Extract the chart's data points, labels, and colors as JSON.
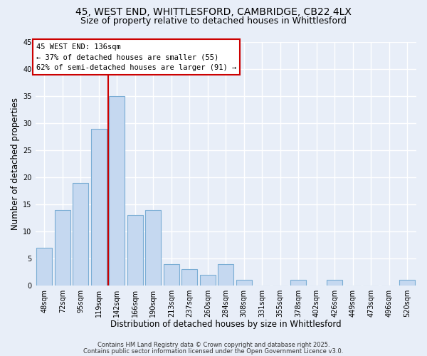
{
  "title_line1": "45, WEST END, WHITTLESFORD, CAMBRIDGE, CB22 4LX",
  "title_line2": "Size of property relative to detached houses in Whittlesford",
  "xlabel": "Distribution of detached houses by size in Whittlesford",
  "ylabel": "Number of detached properties",
  "bar_labels": [
    "48sqm",
    "72sqm",
    "95sqm",
    "119sqm",
    "142sqm",
    "166sqm",
    "190sqm",
    "213sqm",
    "237sqm",
    "260sqm",
    "284sqm",
    "308sqm",
    "331sqm",
    "355sqm",
    "378sqm",
    "402sqm",
    "426sqm",
    "449sqm",
    "473sqm",
    "496sqm",
    "520sqm"
  ],
  "bar_values": [
    7,
    14,
    19,
    29,
    35,
    13,
    14,
    4,
    3,
    2,
    4,
    1,
    0,
    0,
    1,
    0,
    1,
    0,
    0,
    0,
    1
  ],
  "bar_color": "#c5d8f0",
  "bar_edge_color": "#7aadd4",
  "property_line_color": "#cc0000",
  "annotation_line1": "45 WEST END: 136sqm",
  "annotation_line2": "← 37% of detached houses are smaller (55)",
  "annotation_line3": "62% of semi-detached houses are larger (91) →",
  "annotation_box_color": "#ffffff",
  "annotation_box_edge_color": "#cc0000",
  "ylim": [
    0,
    45
  ],
  "yticks": [
    0,
    5,
    10,
    15,
    20,
    25,
    30,
    35,
    40,
    45
  ],
  "footer_line1": "Contains HM Land Registry data © Crown copyright and database right 2025.",
  "footer_line2": "Contains public sector information licensed under the Open Government Licence v3.0.",
  "background_color": "#e8eef8",
  "plot_bg_color": "#e8eef8",
  "grid_color": "#ffffff",
  "title_fontsize": 10,
  "subtitle_fontsize": 9,
  "axis_label_fontsize": 8.5,
  "tick_fontsize": 7,
  "annotation_fontsize": 7.5,
  "footer_fontsize": 6
}
